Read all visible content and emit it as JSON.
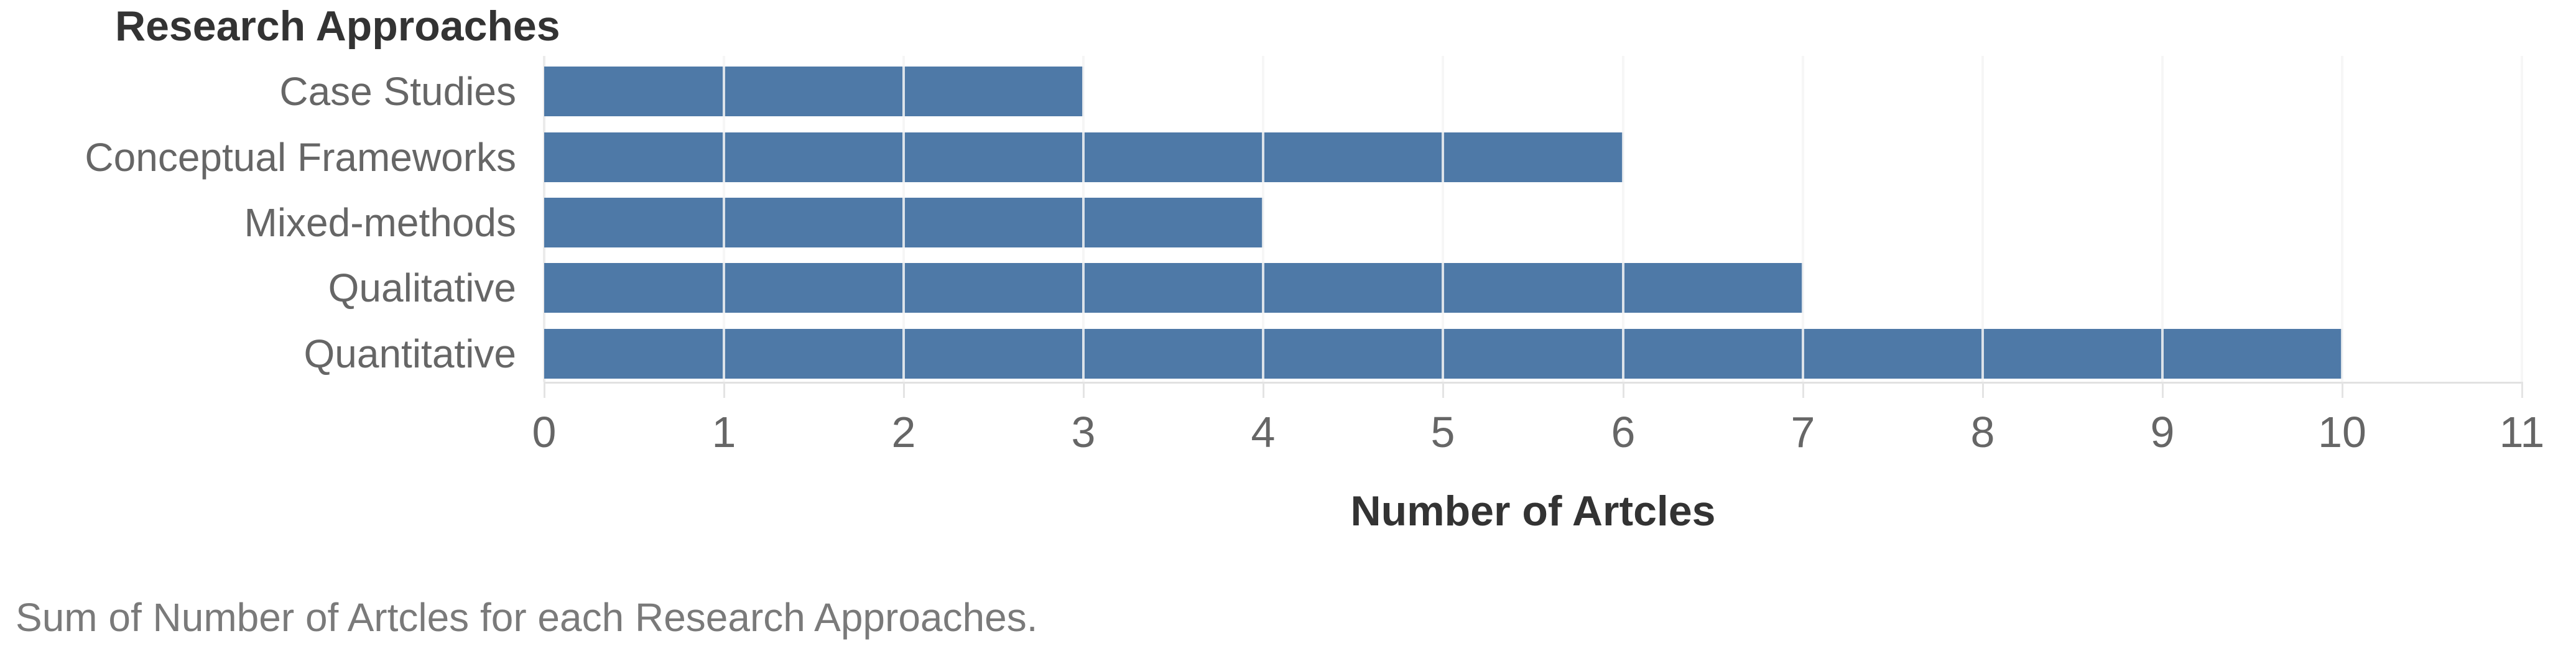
{
  "title": "Research Approaches",
  "axis": {
    "x_title": "Number of Artcles",
    "tick_labels": [
      "0",
      "1",
      "2",
      "3",
      "4",
      "5",
      "6",
      "7",
      "8",
      "9",
      "10",
      "11"
    ]
  },
  "caption": "Sum of Number of Artcles for each Research Approaches.",
  "colors": {
    "bar": "#4e79a7",
    "gridline": "#ebebeb",
    "gridline_over_bar": "rgba(245,245,245,0.85)",
    "axis_line": "#e1e1e1",
    "tick_mark": "#e4e4e4",
    "title_text": "#333333",
    "label_text": "#666666",
    "tick_text": "#666666",
    "caption_text": "#7a7a7a",
    "background": "#ffffff"
  },
  "chart_data": {
    "type": "bar",
    "orientation": "horizontal",
    "title": "Research Approaches",
    "xlabel": "Number of Artcles",
    "ylabel": "Research Approaches",
    "categories": [
      "Case Studies",
      "Conceptual Frameworks",
      "Mixed-methods",
      "Qualitative",
      "Quantitative"
    ],
    "values": [
      3,
      6,
      4,
      7,
      10
    ],
    "xlim": [
      0,
      11
    ],
    "xticks": [
      0,
      1,
      2,
      3,
      4,
      5,
      6,
      7,
      8,
      9,
      10,
      11
    ],
    "grid": true,
    "legend": false
  }
}
